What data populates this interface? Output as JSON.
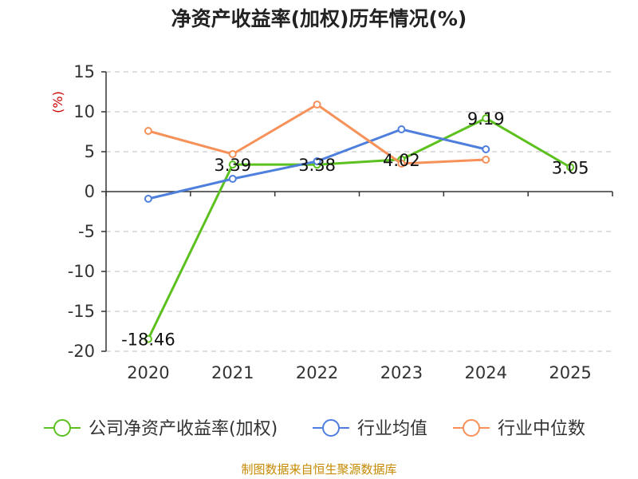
{
  "chart_data": {
    "type": "line",
    "title": "净资产收益率(加权)历年情况(%)",
    "ylabel": "(%)",
    "categories": [
      "2020",
      "2021",
      "2022",
      "2023",
      "2024",
      "2025"
    ],
    "ylim": [
      -20,
      15
    ],
    "yticks": [
      15,
      10,
      5,
      0,
      -5,
      -10,
      -15,
      -20
    ],
    "ytick_labels": [
      "15",
      "10",
      "5",
      "0",
      "-5",
      "-10",
      "-15",
      "-20"
    ],
    "grid": true,
    "legend_position": "bottom",
    "series": [
      {
        "name": "公司净资产收益率(加权)",
        "color": "#5cc11f",
        "values": [
          -18.46,
          3.39,
          3.38,
          4.02,
          9.19,
          3.05
        ],
        "labels": [
          "-18.46",
          "3.39",
          "3.38",
          "4.02",
          "9.19",
          "3.05"
        ]
      },
      {
        "name": "行业均值",
        "color": "#4f7fdc",
        "values": [
          -0.9,
          1.6,
          3.8,
          7.8,
          5.3,
          null
        ]
      },
      {
        "name": "行业中位数",
        "color": "#f6915a",
        "values": [
          7.6,
          4.7,
          10.9,
          3.5,
          4.0,
          null
        ]
      }
    ],
    "source": "制图数据来自恒生聚源数据库"
  }
}
